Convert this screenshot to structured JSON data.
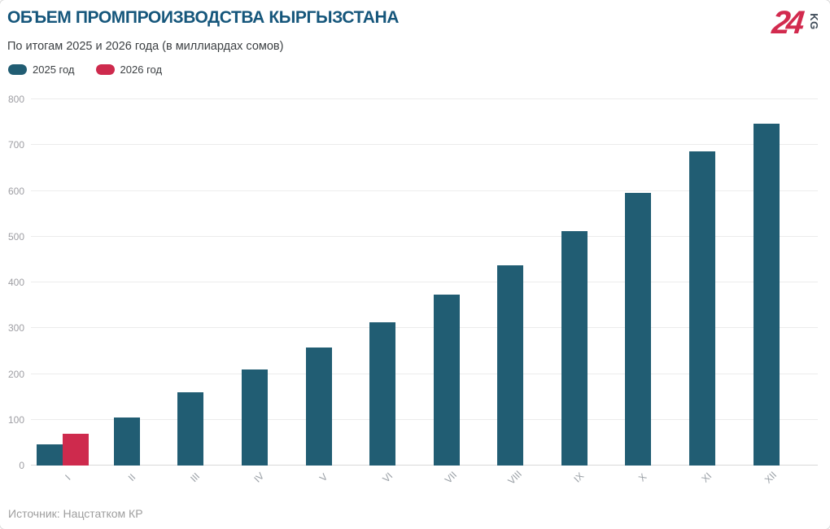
{
  "chart_data": {
    "type": "bar",
    "title": "ОБЪЕМ ПРОМПРОИЗВОДСТВА КЫРГЫЗСТАНА",
    "subtitle": "По итогам 2025 и 2026 года (в миллиардах сомов)",
    "categories": [
      "I",
      "II",
      "III",
      "IV",
      "V",
      "VI",
      "VII",
      "VIII",
      "IX",
      "X",
      "XI",
      "XII"
    ],
    "series": [
      {
        "name": "2025 год",
        "color": "#215D73",
        "values": [
          47,
          105,
          160,
          210,
          257,
          313,
          374,
          438,
          512,
          596,
          687,
          746
        ]
      },
      {
        "name": "2026 год",
        "color": "#CE2A4D",
        "values": [
          70,
          null,
          null,
          null,
          null,
          null,
          null,
          null,
          null,
          null,
          null,
          null
        ]
      }
    ],
    "xlabel": "",
    "ylabel": "",
    "ylim": [
      0,
      800
    ],
    "yticks": [
      0,
      100,
      200,
      300,
      400,
      500,
      600,
      700,
      800
    ],
    "grid": true,
    "legend_position": "top-left"
  },
  "colors": {
    "title": "#15567B",
    "gridline": "#ececec",
    "axis_line": "#d9d9d9",
    "tick_text": "#9E9EA3"
  },
  "logo": {
    "number": "24",
    "suffix": "KG",
    "number_color": "#D22A4E",
    "suffix_color": "#3E4A57"
  },
  "source": "Источник: Нацстатком КР"
}
